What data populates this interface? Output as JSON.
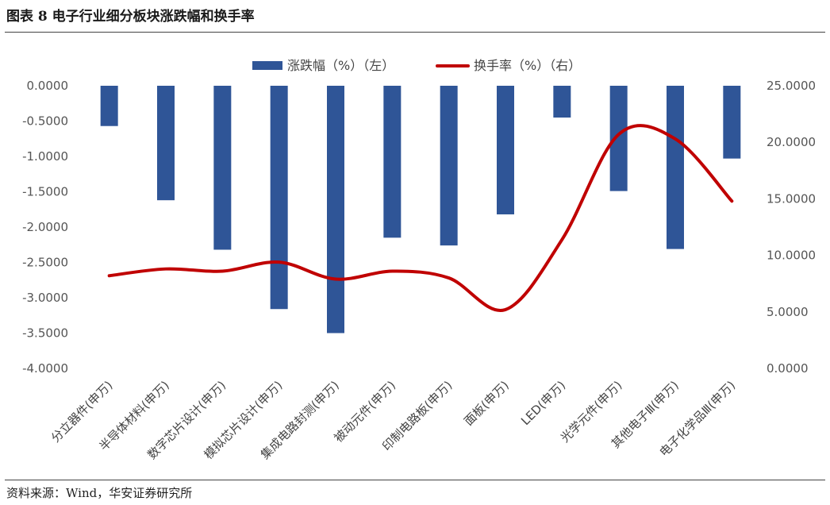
{
  "figure_title": "图表 8 电子行业细分板块涨跌幅和换手率",
  "source": "资料来源：Wind，华安证券研究所",
  "colors": {
    "bar": "#2F5597",
    "line": "#C00000",
    "axis_text": "#555555"
  },
  "chart_data": {
    "type": "bar",
    "categories": [
      "分立器件(申万)",
      "半导体材料(申万)",
      "数字芯片设计(申万)",
      "模拟芯片设计(申万)",
      "集成电路封测(申万)",
      "被动元件(申万)",
      "印制电路板(申万)",
      "面板(申万)",
      "LED(申万)",
      "光学元件(申万)",
      "其他电子Ⅲ(申万)",
      "电子化学品Ⅲ(申万)"
    ],
    "series": [
      {
        "name": "涨跌幅（%）（左）",
        "type": "bar",
        "axis": "left",
        "values": [
          -0.57,
          -1.62,
          -2.32,
          -3.16,
          -3.5,
          -2.15,
          -2.26,
          -1.82,
          -0.45,
          -1.49,
          -2.31,
          -1.03
        ]
      },
      {
        "name": "换手率（%）（右）",
        "type": "line",
        "axis": "right",
        "values": [
          8.2,
          8.8,
          8.6,
          9.4,
          7.9,
          8.6,
          8.0,
          5.2,
          11.4,
          20.7,
          20.3,
          14.8
        ]
      }
    ],
    "y_left": {
      "ylim": [
        -4.0,
        0.0
      ],
      "ticks": [
        "0.0000",
        "-0.5000",
        "-1.0000",
        "-1.5000",
        "-2.0000",
        "-2.5000",
        "-3.0000",
        "-3.5000",
        "-4.0000"
      ]
    },
    "y_right": {
      "ylim": [
        0,
        25
      ],
      "ticks": [
        "25.0000",
        "20.0000",
        "15.0000",
        "10.0000",
        "5.0000",
        "0.0000"
      ]
    },
    "legend_position": "top-center",
    "grid": false
  }
}
